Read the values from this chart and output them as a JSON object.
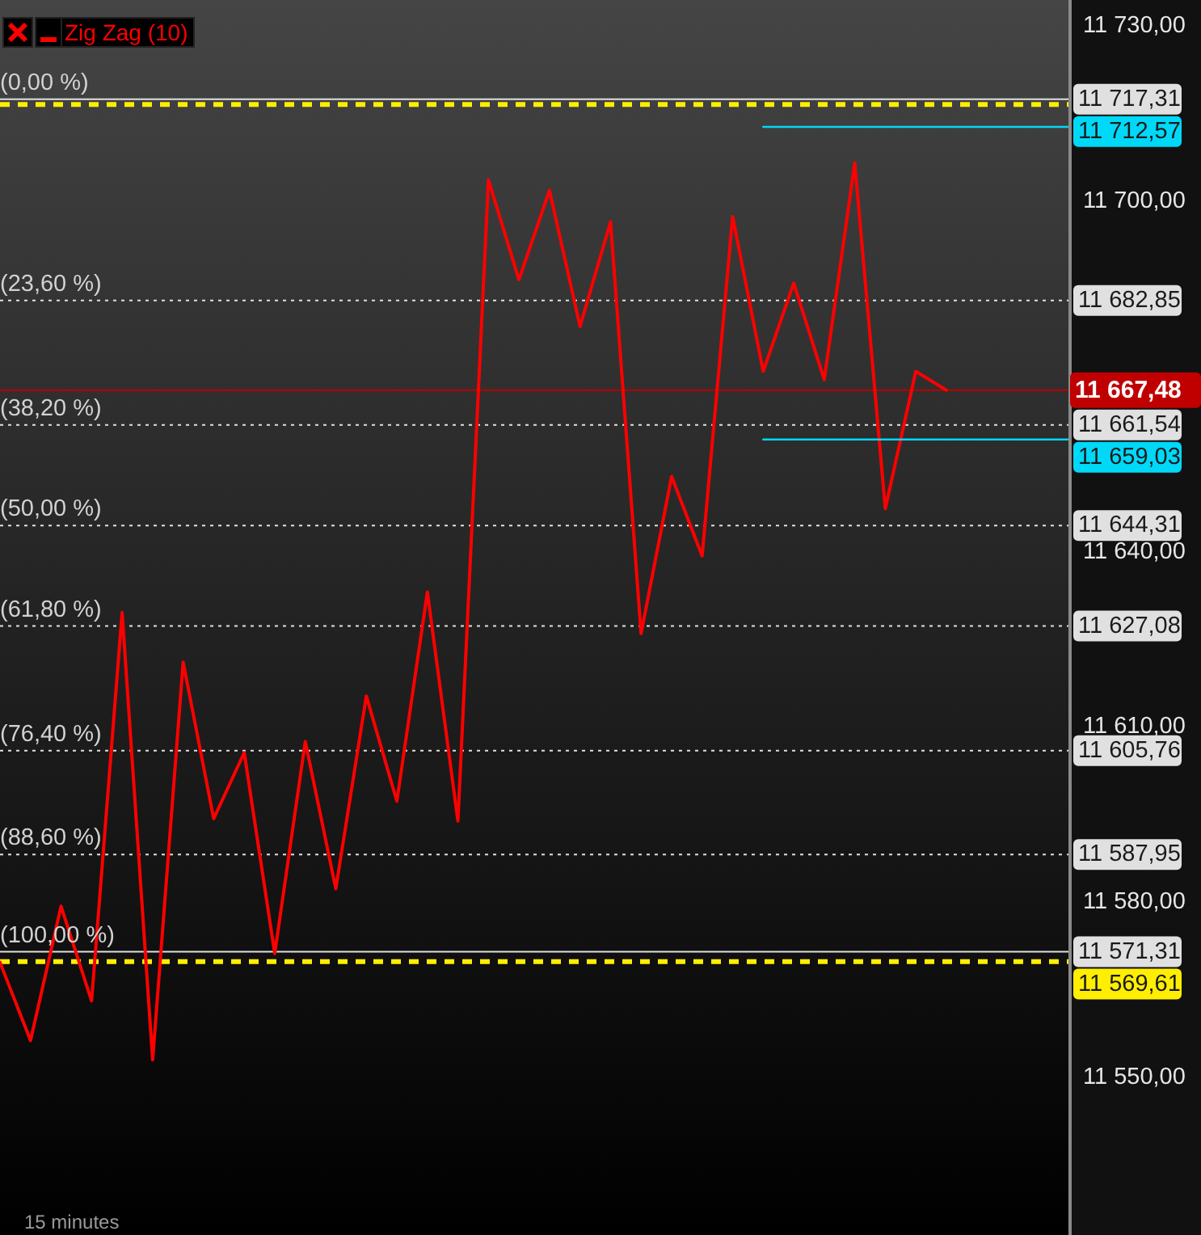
{
  "chart_data": {
    "type": "line",
    "categories": [
      null,
      null,
      null,
      null,
      null,
      null,
      null,
      null,
      null,
      null,
      null,
      null,
      null,
      null,
      null,
      null,
      null,
      null,
      null,
      null,
      null,
      null,
      null,
      null,
      null,
      null,
      null,
      null,
      null,
      null,
      null,
      null,
      null,
      null,
      null,
      null
    ],
    "series": [
      {
        "name": "Zig Zag (10)",
        "color": "#ff0000",
        "values": [
          11569.5,
          11556.1,
          11579.1,
          11562.9,
          11629.4,
          11552.8,
          11620.9,
          11594.1,
          11605.4,
          11571.0,
          11607.3,
          11582.1,
          11615.1,
          11597.1,
          11632.9,
          11593.7,
          11703.5,
          11686.4,
          11701.7,
          11678.4,
          11696.3,
          11625.8,
          11652.7,
          11639.1,
          11697.2,
          11670.7,
          11685.8,
          11669.3,
          11706.4,
          11647.2,
          11670.7,
          11667.5,
          null,
          null,
          null,
          null
        ]
      },
      {
        "type": "line",
        "color": "#00d8f8",
        "values": [
          null,
          null,
          null,
          null,
          null,
          null,
          null,
          null,
          null,
          null,
          null,
          null,
          null,
          null,
          null,
          null,
          null,
          null,
          null,
          null,
          null,
          null,
          null,
          null,
          null,
          11712.57,
          11712.57,
          11712.57,
          11712.57,
          11712.57,
          11712.57,
          11712.57,
          11712.57,
          11712.57,
          11712.57,
          11712.57
        ],
        "value_labels": [
          null,
          null,
          null,
          null,
          null,
          null,
          null,
          null,
          null,
          null,
          null,
          null,
          null,
          null,
          null,
          null,
          null,
          null,
          null,
          null,
          null,
          null,
          null,
          null,
          null,
          null,
          null,
          null,
          null,
          null,
          null,
          null,
          null,
          null,
          null,
          "11 712,57"
        ]
      },
      {
        "type": "line",
        "color": "#00d8f8",
        "values": [
          null,
          null,
          null,
          null,
          null,
          null,
          null,
          null,
          null,
          null,
          null,
          null,
          null,
          null,
          null,
          null,
          null,
          null,
          null,
          null,
          null,
          null,
          null,
          null,
          null,
          11659.03,
          11659.03,
          11659.03,
          11659.03,
          11659.03,
          11659.03,
          11659.03,
          11659.03,
          11659.03,
          11659.03,
          11659.03
        ],
        "value_labels": [
          null,
          null,
          null,
          null,
          null,
          null,
          null,
          null,
          null,
          null,
          null,
          null,
          null,
          null,
          null,
          null,
          null,
          null,
          null,
          null,
          null,
          null,
          null,
          null,
          null,
          null,
          null,
          null,
          null,
          null,
          null,
          null,
          null,
          null,
          null,
          "11 659,03"
        ]
      }
    ],
    "ylim": [
      11522.8,
      11734.3
    ],
    "yticks": [
      {
        "value": 11550,
        "label": "11 550,00"
      },
      {
        "value": 11580,
        "label": "11 580,00"
      },
      {
        "value": 11610,
        "label": "11 610,00"
      },
      {
        "value": 11640,
        "label": "11 640,00"
      },
      {
        "value": 11700,
        "label": "11 700,00"
      },
      {
        "value": 11730,
        "label": "11 730,00"
      }
    ],
    "tick_labels": "y",
    "legend": "top left",
    "ref_lines": [
      {
        "axis": "y",
        "value": 11716.4,
        "color": "#ffee00",
        "line_style": "dashed"
      },
      {
        "axis": "y",
        "value": 11717.31,
        "label": "11 717,31",
        "color": "#e0e0e0",
        "line_style": "solid"
      },
      {
        "axis": "y",
        "value": 11682.85,
        "label": "11 682,85",
        "color": "#e0e0e0",
        "line_style": "dotted"
      },
      {
        "axis": "y",
        "value": 11661.54,
        "label": "11 661,54",
        "color": "#e0e0e0",
        "line_style": "dotted"
      },
      {
        "axis": "y",
        "value": 11644.31,
        "label": "11 644,31",
        "color": "#e0e0e0",
        "line_style": "dotted"
      },
      {
        "axis": "y",
        "value": 11627.08,
        "label": "11 627,08",
        "color": "#e0e0e0",
        "line_style": "dotted"
      },
      {
        "axis": "y",
        "value": 11605.76,
        "label": "11 605,76",
        "color": "#e0e0e0",
        "line_style": "dotted"
      },
      {
        "axis": "y",
        "value": 11587.95,
        "label": "11 587,95",
        "color": "#e0e0e0",
        "line_style": "dotted"
      },
      {
        "axis": "y",
        "value": 11569.61,
        "label": "11 569,61",
        "color": "#ffee00",
        "line_style": "dashed"
      },
      {
        "axis": "y",
        "value": 11571.31,
        "label": "11 571,31",
        "color": "#e0e0e0",
        "line_style": "solid"
      },
      {
        "axis": "y",
        "value": 11667.48,
        "label": "11 667,48",
        "color": "#c00000",
        "line_style": "solid"
      }
    ],
    "annotations": [
      {
        "text": "(0,00 %)",
        "y": 11717.31
      },
      {
        "text": "(23,60 %)",
        "y": 11682.85
      },
      {
        "text": "(38,20 %)",
        "y": 11661.54
      },
      {
        "text": "(50,00 %)",
        "y": 11644.31
      },
      {
        "text": "(61,80 %)",
        "y": 11627.08
      },
      {
        "text": "(76,40 %)",
        "y": 11605.76
      },
      {
        "text": "(88,60 %)",
        "y": 11587.95
      },
      {
        "text": "(100,00 %)",
        "y": 11571.31
      },
      "15 minutes"
    ]
  }
}
